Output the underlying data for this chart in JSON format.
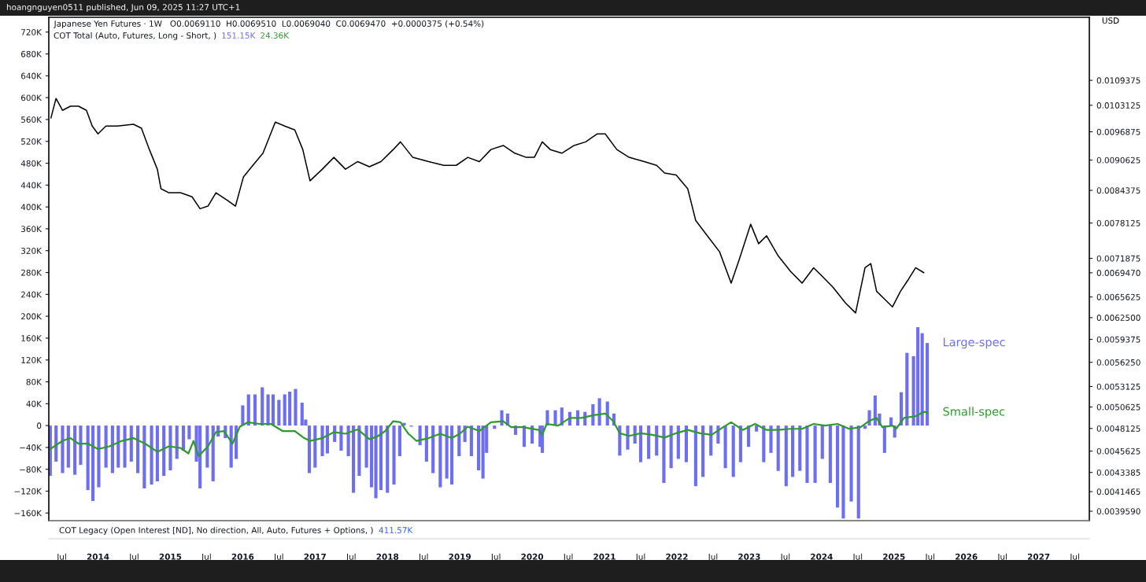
{
  "chart_data": {
    "type": "bar",
    "title": "Japanese Yen Futures · 1W   O0.0069110  H0.0069510  L0.0069040  C0.0069470  +0.0000375 (+0.54%)",
    "y2label": "USD",
    "annotations": [
      "hoangnguyen0511 published, Jun 09, 2025 11:27 UTC+1",
      "COT Total (Auto, Futures, Long - Short, )",
      "151.15K",
      "24.36K",
      "COT Legacy (Open Interest [ND], No direction, All, Auto, Futures + Options, )",
      "411.57K"
    ],
    "xlim": [
      2013.32,
      2027.7
    ],
    "xticks": [
      {
        "value": 2013.5,
        "label": "Jul"
      },
      {
        "value": 2014,
        "label": "2014"
      },
      {
        "value": 2014.5,
        "label": "Jul"
      },
      {
        "value": 2015,
        "label": "2015"
      },
      {
        "value": 2015.5,
        "label": "Jul"
      },
      {
        "value": 2016,
        "label": "2016"
      },
      {
        "value": 2016.5,
        "label": "Jul"
      },
      {
        "value": 2017,
        "label": "2017"
      },
      {
        "value": 2017.5,
        "label": "Jul"
      },
      {
        "value": 2018,
        "label": "2018"
      },
      {
        "value": 2018.5,
        "label": "Jul"
      },
      {
        "value": 2019,
        "label": "2019"
      },
      {
        "value": 2019.5,
        "label": "Jul"
      },
      {
        "value": 2020,
        "label": "2020"
      },
      {
        "value": 2020.5,
        "label": "Jul"
      },
      {
        "value": 2021,
        "label": "2021"
      },
      {
        "value": 2021.5,
        "label": "Jul"
      },
      {
        "value": 2022,
        "label": "2022"
      },
      {
        "value": 2022.5,
        "label": "Jul"
      },
      {
        "value": 2023,
        "label": "2023"
      },
      {
        "value": 2023.5,
        "label": "Jul"
      },
      {
        "value": 2024,
        "label": "2024"
      },
      {
        "value": 2024.5,
        "label": "Jul"
      },
      {
        "value": 2025,
        "label": "2025"
      },
      {
        "value": 2025.5,
        "label": "Jul"
      },
      {
        "value": 2026,
        "label": "2026"
      },
      {
        "value": 2026.5,
        "label": "Jul"
      },
      {
        "value": 2027,
        "label": "2027"
      },
      {
        "value": 2027.5,
        "label": "Jul"
      }
    ],
    "ylim": [
      -174,
      747
    ],
    "yticks": [
      {
        "value": -160,
        "label": "−160K"
      },
      {
        "value": -120,
        "label": "−120K"
      },
      {
        "value": -80,
        "label": "−80K"
      },
      {
        "value": -40,
        "label": "−40K"
      },
      0,
      {
        "value": 40,
        "label": "40K"
      },
      {
        "value": 80,
        "label": "80K"
      },
      {
        "value": 120,
        "label": "120K"
      },
      {
        "value": 160,
        "label": "160K"
      },
      {
        "value": 200,
        "label": "200K"
      },
      {
        "value": 240,
        "label": "240K"
      },
      {
        "value": 280,
        "label": "280K"
      },
      {
        "value": 320,
        "label": "320K"
      },
      {
        "value": 360,
        "label": "360K"
      },
      {
        "value": 400,
        "label": "400K"
      },
      {
        "value": 440,
        "label": "440K"
      },
      {
        "value": 480,
        "label": "480K"
      },
      {
        "value": 520,
        "label": "520K"
      },
      {
        "value": 560,
        "label": "560K"
      },
      {
        "value": 600,
        "label": "600K"
      },
      {
        "value": 640,
        "label": "640K"
      },
      {
        "value": 680,
        "label": "680K"
      },
      {
        "value": 720,
        "label": "720K"
      }
    ],
    "log": "y2",
    "y2lim": [
      0.003872,
      0.01269
    ],
    "y2ticks": [
      {
        "value": 0.003959,
        "label": "0.0039590"
      },
      0.0041465,
      0.0043385,
      0.0045625,
      0.0048125,
      0.0050625,
      0.0053125,
      {
        "value": 0.005625,
        "label": "0.0056250"
      },
      0.0059375,
      {
        "value": 0.00625,
        "label": "0.0062500"
      },
      0.0065625,
      {
        "value": 0.006947,
        "label": "0.0069470"
      },
      0.0071875,
      0.0078125,
      0.0084375,
      0.0090625,
      0.0096875,
      0.0103125,
      0.0109375
    ],
    "grid": false,
    "series": [
      {
        "name": "Large-spec",
        "color": "#6e6ef0",
        "x": [
          2013.34,
          2013.42,
          2013.51,
          2013.59,
          2013.68,
          2013.76,
          2013.86,
          2013.93,
          2014.01,
          2014.11,
          2014.2,
          2014.28,
          2014.37,
          2014.46,
          2014.55,
          2014.64,
          2014.74,
          2014.82,
          2014.91,
          2015.0,
          2015.09,
          2015.18,
          2015.26,
          2015.36,
          2015.41,
          2015.51,
          2015.59,
          2015.66,
          2015.76,
          2015.84,
          2015.91,
          2016.0,
          2016.08,
          2016.17,
          2016.27,
          2016.35,
          2016.42,
          2016.5,
          2016.58,
          2016.65,
          2016.73,
          2016.82,
          2016.87,
          2016.92,
          2017.0,
          2017.1,
          2017.17,
          2017.27,
          2017.36,
          2017.46,
          2017.53,
          2017.61,
          2017.71,
          2017.78,
          2017.84,
          2017.91,
          2018.0,
          2018.09,
          2018.17,
          2018.23,
          2018.33,
          2018.45,
          2018.54,
          2018.63,
          2018.73,
          2018.82,
          2018.89,
          2018.99,
          2019.07,
          2019.16,
          2019.26,
          2019.32,
          2019.37,
          2019.48,
          2019.58,
          2019.66,
          2019.77,
          2019.89,
          2020.0,
          2020.11,
          2020.14,
          2020.21,
          2020.32,
          2020.41,
          2020.52,
          2020.63,
          2020.73,
          2020.84,
          2020.93,
          2021.04,
          2021.13,
          2021.21,
          2021.32,
          2021.42,
          2021.5,
          2021.61,
          2021.72,
          2021.82,
          2021.92,
          2022.02,
          2022.13,
          2022.26,
          2022.36,
          2022.47,
          2022.57,
          2022.67,
          2022.78,
          2022.88,
          2022.99,
          2023.1,
          2023.2,
          2023.3,
          2023.4,
          2023.51,
          2023.6,
          2023.7,
          2023.8,
          2023.91,
          2024.01,
          2024.12,
          2024.22,
          2024.3,
          2024.41,
          2024.51,
          2024.6,
          2024.66,
          2024.74,
          2024.8,
          2024.87,
          2024.96,
          2025.01,
          2025.1,
          2025.18,
          2025.27,
          2025.33,
          2025.39,
          2025.46
        ],
        "values": [
          -92,
          -66,
          -87,
          -77,
          -90,
          -72,
          -118,
          -138,
          -113,
          -77,
          -87,
          -77,
          -77,
          -66,
          -87,
          -115,
          -108,
          -102,
          -92,
          -82,
          -61,
          -46,
          -25,
          -66,
          -115,
          -77,
          -102,
          -20,
          -23,
          -77,
          -61,
          37,
          57,
          57,
          70,
          57,
          57,
          47,
          57,
          62,
          67,
          42,
          11,
          -87,
          -77,
          -56,
          -51,
          -30,
          -46,
          -56,
          -123,
          -92,
          -77,
          -113,
          -133,
          -118,
          -123,
          -108,
          -56,
          5,
          -2,
          -36,
          -66,
          -87,
          -113,
          -97,
          -108,
          -56,
          -30,
          -56,
          -82,
          -97,
          -50,
          -6,
          28,
          22,
          -17,
          -39,
          -33,
          -39,
          -50,
          28,
          28,
          33,
          25,
          28,
          25,
          39,
          50,
          44,
          22,
          -55,
          -44,
          -33,
          -67,
          -61,
          -55,
          -105,
          -78,
          -61,
          -67,
          -111,
          -94,
          -55,
          -33,
          -78,
          -94,
          -67,
          -39,
          -11,
          -67,
          -50,
          -83,
          -111,
          -94,
          -83,
          -105,
          -105,
          -61,
          -105,
          -150,
          -170,
          -139,
          -170,
          -6,
          28,
          55,
          22,
          -50,
          15,
          -22,
          61,
          133,
          127,
          180,
          169,
          151
        ]
      },
      {
        "name": "Small-spec",
        "type": "line",
        "color": "#2e9a2e",
        "x": [
          2013.34,
          2013.51,
          2013.62,
          2013.73,
          2013.86,
          2014.0,
          2014.16,
          2014.33,
          2014.49,
          2014.65,
          2014.82,
          2014.98,
          2015.14,
          2015.25,
          2015.32,
          2015.39,
          2015.52,
          2015.63,
          2015.74,
          2015.86,
          2015.96,
          2016.07,
          2016.23,
          2016.39,
          2016.55,
          2016.72,
          2016.85,
          2016.93,
          2017.1,
          2017.26,
          2017.42,
          2017.59,
          2017.75,
          2017.86,
          2017.97,
          2018.08,
          2018.18,
          2018.29,
          2018.4,
          2018.57,
          2018.73,
          2018.89,
          2019.0,
          2019.11,
          2019.27,
          2019.43,
          2019.6,
          2019.71,
          2019.87,
          2020.09,
          2020.14,
          2020.2,
          2020.36,
          2020.52,
          2020.68,
          2020.85,
          2021.01,
          2021.12,
          2021.21,
          2021.34,
          2021.5,
          2021.66,
          2021.83,
          2021.99,
          2022.15,
          2022.32,
          2022.48,
          2022.64,
          2022.75,
          2022.91,
          2023.08,
          2023.24,
          2023.4,
          2023.57,
          2023.73,
          2023.89,
          2024.05,
          2024.22,
          2024.38,
          2024.54,
          2024.65,
          2024.76,
          2024.84,
          2024.98,
          2025.03,
          2025.14,
          2025.3,
          2025.41,
          2025.46
        ],
        "values": [
          -43,
          -28,
          -23,
          -33,
          -33,
          -43,
          -38,
          -28,
          -23,
          -33,
          -48,
          -38,
          -41,
          -51,
          -28,
          -56,
          -38,
          -12,
          -10,
          -33,
          -2,
          6,
          3,
          3,
          -10,
          -10,
          -23,
          -28,
          -23,
          -12,
          -15,
          -7,
          -25,
          -20,
          -10,
          8,
          6,
          -15,
          -28,
          -23,
          -15,
          -23,
          -15,
          -2,
          -10,
          6,
          8,
          -3,
          -3,
          -8,
          -17,
          3,
          0,
          14,
          14,
          19,
          22,
          8,
          -14,
          -19,
          -14,
          -17,
          -22,
          -14,
          -8,
          -14,
          -17,
          -3,
          6,
          -8,
          3,
          -8,
          -8,
          -6,
          -6,
          3,
          0,
          3,
          -6,
          -3,
          8,
          14,
          -3,
          0,
          -6,
          14,
          17,
          25,
          24
        ]
      },
      {
        "type": "line",
        "axis": "y2",
        "color": "#000000",
        "x": [
          2013.35,
          2013.42,
          2013.51,
          2013.62,
          2013.73,
          2013.84,
          2013.92,
          2014.0,
          2014.11,
          2014.27,
          2014.49,
          2014.6,
          2014.71,
          2014.82,
          2014.87,
          2014.98,
          2015.14,
          2015.3,
          2015.41,
          2015.52,
          2015.63,
          2015.79,
          2015.9,
          2016.01,
          2016.14,
          2016.28,
          2016.45,
          2016.58,
          2016.72,
          2016.83,
          2016.93,
          2017.1,
          2017.26,
          2017.42,
          2017.59,
          2017.75,
          2017.91,
          2018.08,
          2018.18,
          2018.35,
          2018.57,
          2018.78,
          2018.95,
          2019.11,
          2019.27,
          2019.43,
          2019.6,
          2019.76,
          2019.92,
          2020.03,
          2020.14,
          2020.25,
          2020.41,
          2020.58,
          2020.74,
          2020.9,
          2021.01,
          2021.17,
          2021.34,
          2021.55,
          2021.72,
          2021.83,
          2021.99,
          2022.15,
          2022.26,
          2022.42,
          2022.59,
          2022.75,
          2022.86,
          2023.02,
          2023.13,
          2023.24,
          2023.4,
          2023.57,
          2023.73,
          2023.89,
          2024.0,
          2024.16,
          2024.33,
          2024.47,
          2024.6,
          2024.68,
          2024.76,
          2024.87,
          2024.98,
          2025.09,
          2025.2,
          2025.3,
          2025.41
        ],
        "values": [
          0.01001,
          0.01048,
          0.01019,
          0.01029,
          0.01029,
          0.01019,
          0.00982,
          0.00964,
          0.00982,
          0.00982,
          0.00986,
          0.00977,
          0.00929,
          0.00887,
          0.00847,
          0.00839,
          0.00839,
          0.00831,
          0.00808,
          0.00813,
          0.00839,
          0.00824,
          0.00813,
          0.00871,
          0.00895,
          0.00921,
          0.00991,
          0.00982,
          0.00973,
          0.00929,
          0.00863,
          0.00887,
          0.00912,
          0.00887,
          0.00903,
          0.00892,
          0.00903,
          0.00929,
          0.00946,
          0.00912,
          0.00903,
          0.00895,
          0.00895,
          0.00912,
          0.00903,
          0.00929,
          0.00938,
          0.00921,
          0.00912,
          0.00912,
          0.00946,
          0.00929,
          0.00921,
          0.00938,
          0.00946,
          0.00964,
          0.00964,
          0.00929,
          0.00912,
          0.00903,
          0.00895,
          0.00879,
          0.00875,
          0.00847,
          0.00786,
          0.00758,
          0.0073,
          0.00678,
          0.00716,
          0.00779,
          0.00744,
          0.00758,
          0.00723,
          0.00697,
          0.00678,
          0.00703,
          0.0069,
          0.00671,
          0.00647,
          0.00632,
          0.00703,
          0.0071,
          0.00665,
          0.00653,
          0.00641,
          0.00665,
          0.00684,
          0.00703,
          0.00695
        ]
      }
    ]
  }
}
